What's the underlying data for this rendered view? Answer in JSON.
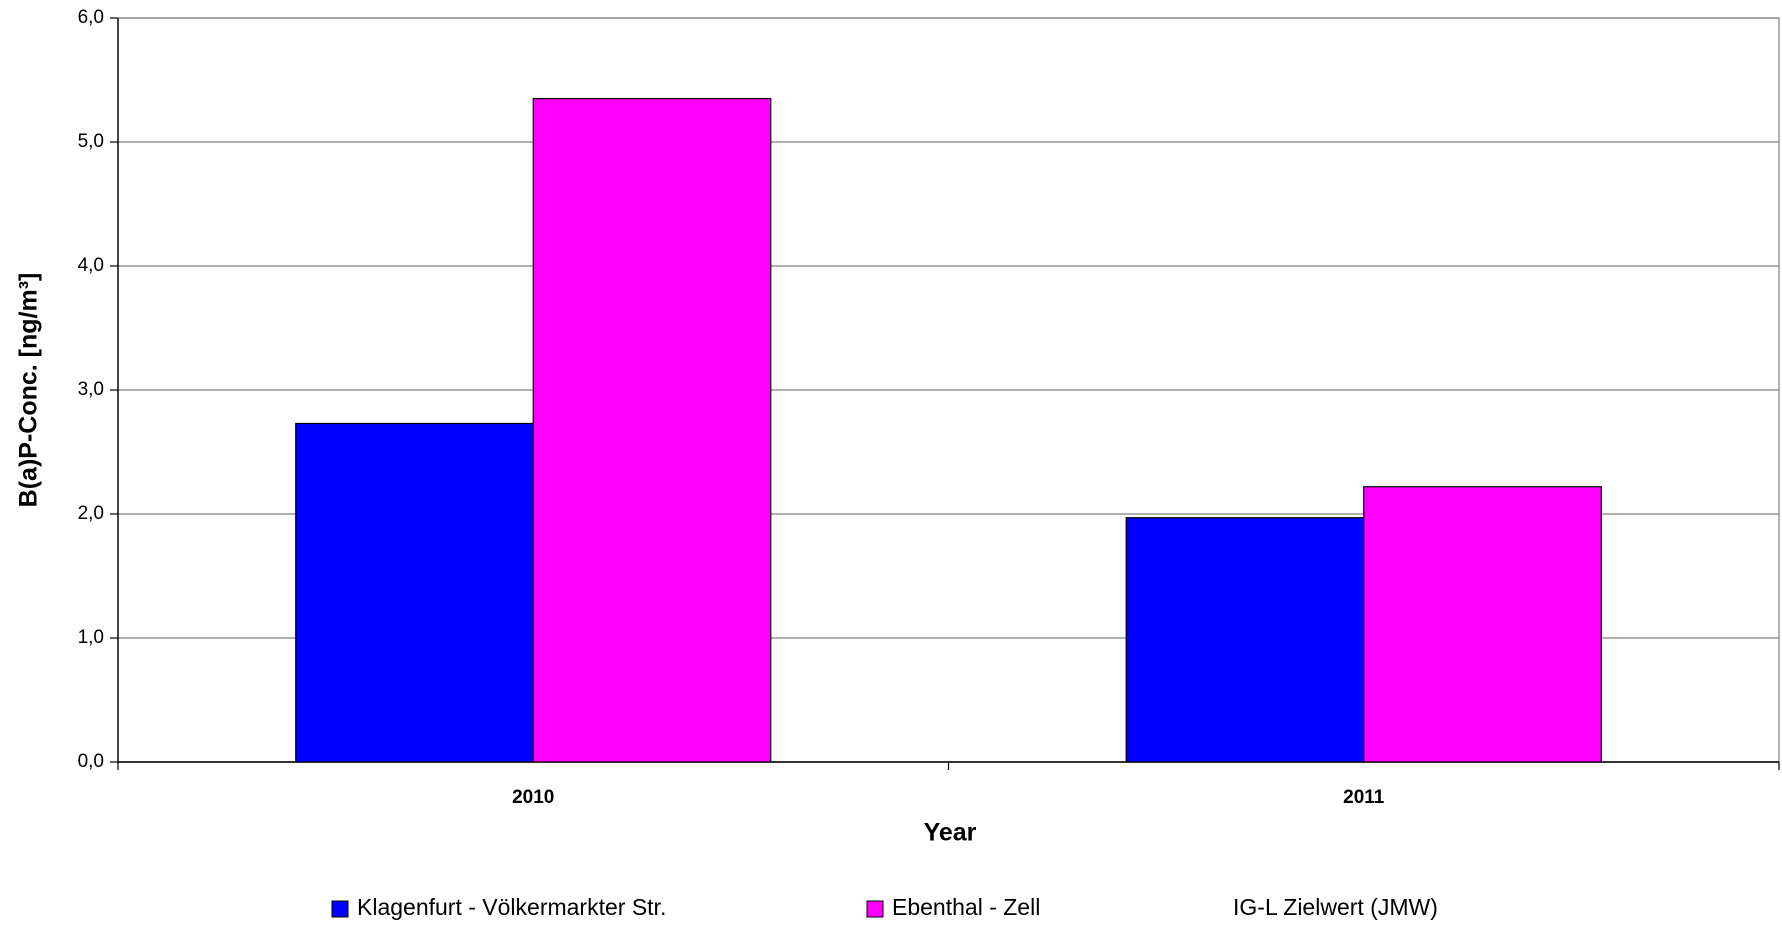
{
  "chart_data": {
    "type": "bar",
    "x_label": "Year",
    "y_label": "B(a)P-Conc. [ng/m³]",
    "categories": [
      "2010",
      "2011"
    ],
    "series": [
      {
        "name": "Klagenfurt - Völkermarkter Str.",
        "color": "#0000ff",
        "values": [
          2.73,
          1.97
        ]
      },
      {
        "name": "Ebenthal - Zell",
        "color": "#ff00ff",
        "values": [
          5.35,
          2.22
        ]
      },
      {
        "name": "IG-L Zielwert (JMW)",
        "values": [
          null,
          null
        ]
      }
    ],
    "ylim": [
      0,
      6
    ],
    "yticks": [
      {
        "value": 0,
        "label": "0,0"
      },
      {
        "value": 1,
        "label": "1,0"
      },
      {
        "value": 2,
        "label": "2,0"
      },
      {
        "value": 3,
        "label": "3,0"
      },
      {
        "value": 4,
        "label": "4,0"
      },
      {
        "value": 5,
        "label": "5,0"
      },
      {
        "value": 6,
        "label": "6,0"
      }
    ],
    "grid": true
  }
}
